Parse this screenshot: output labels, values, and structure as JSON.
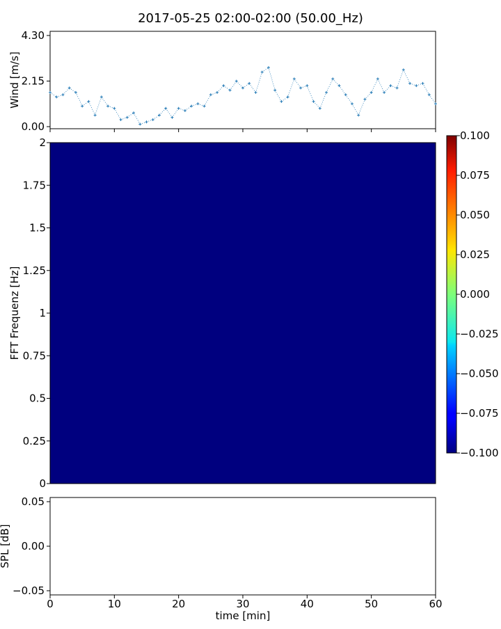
{
  "title": "2017-05-25 02:00-02:00 (50.00_Hz)",
  "chart_data": [
    {
      "type": "scatter",
      "ylabel": "Wind [m/s]",
      "xlim": [
        0,
        60
      ],
      "ylim": [
        0,
        4.3
      ],
      "yticks": [
        "0.00",
        "2.15",
        "4.30"
      ],
      "marker_color": "#1f77b4",
      "x": [
        0,
        1,
        2,
        3,
        4,
        5,
        6,
        7,
        8,
        9,
        10,
        11,
        12,
        13,
        14,
        15,
        16,
        17,
        18,
        19,
        20,
        21,
        22,
        23,
        24,
        25,
        26,
        27,
        28,
        29,
        30,
        31,
        32,
        33,
        34,
        35,
        36,
        37,
        38,
        39,
        40,
        41,
        42,
        43,
        44,
        45,
        46,
        47,
        48,
        49,
        50,
        51,
        52,
        53,
        54,
        55,
        56,
        57,
        58,
        59,
        60
      ],
      "y": [
        1.6,
        1.4,
        1.5,
        1.8,
        1.6,
        1.0,
        1.2,
        0.6,
        1.4,
        1.0,
        0.9,
        0.4,
        0.5,
        0.7,
        0.2,
        0.3,
        0.4,
        0.6,
        0.9,
        0.5,
        0.9,
        0.8,
        1.0,
        1.1,
        1.0,
        1.5,
        1.6,
        1.9,
        1.7,
        2.1,
        1.8,
        2.0,
        1.6,
        2.5,
        2.7,
        1.7,
        1.2,
        1.4,
        2.2,
        1.8,
        1.9,
        1.2,
        0.9,
        1.6,
        2.2,
        1.9,
        1.5,
        1.1,
        0.6,
        1.3,
        1.6,
        2.2,
        1.6,
        1.9,
        1.8,
        2.6,
        2.0,
        1.9,
        2.0,
        1.5,
        1.1
      ]
    },
    {
      "type": "heatmap",
      "ylabel": "FFT Frequenz [Hz]",
      "xlim": [
        0,
        60
      ],
      "ylim": [
        0,
        2
      ],
      "yticks": [
        "0",
        "0.25",
        "0.5",
        "0.75",
        "1",
        "1.25",
        "1.5",
        "1.75",
        "2"
      ],
      "value": -0.1,
      "fill_color": "#00007f",
      "colorbar": {
        "min": -0.1,
        "max": 0.1,
        "ticks": [
          "−0.100",
          "−0.075",
          "−0.050",
          "−0.025",
          "0.000",
          "0.025",
          "0.050",
          "0.075",
          "0.100"
        ],
        "colormap": "jet"
      }
    },
    {
      "type": "line",
      "ylabel": "SPL [dB]",
      "xlabel": "time [min]",
      "xlim": [
        0,
        60
      ],
      "ylim": [
        -0.055,
        0.055
      ],
      "yticks": [
        "−0.05",
        "0.00",
        "0.05"
      ],
      "xticks": [
        "0",
        "10",
        "20",
        "30",
        "40",
        "50",
        "60"
      ],
      "values": []
    }
  ]
}
